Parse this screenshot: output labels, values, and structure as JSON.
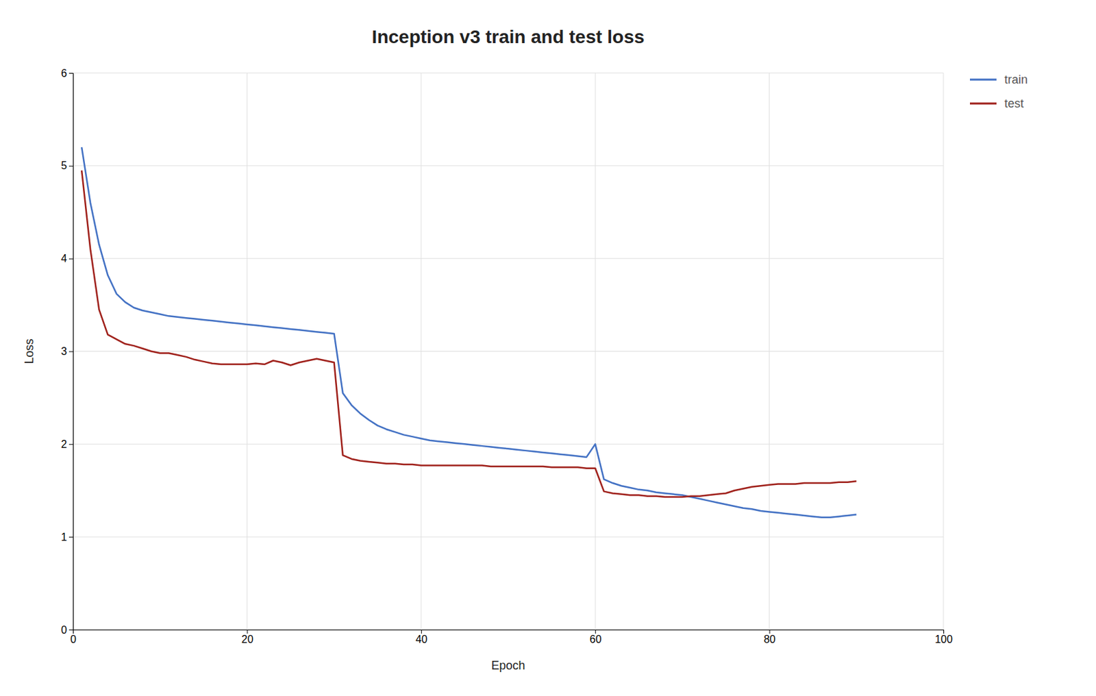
{
  "chart_data": {
    "type": "line",
    "title": "Inception v3 train and test loss",
    "xlabel": "Epoch",
    "ylabel": "Loss",
    "x": [
      1,
      2,
      3,
      4,
      5,
      6,
      7,
      8,
      9,
      10,
      11,
      12,
      13,
      14,
      15,
      16,
      17,
      18,
      19,
      20,
      21,
      22,
      23,
      24,
      25,
      26,
      27,
      28,
      29,
      30,
      31,
      32,
      33,
      34,
      35,
      36,
      37,
      38,
      39,
      40,
      41,
      42,
      43,
      44,
      45,
      46,
      47,
      48,
      49,
      50,
      51,
      52,
      53,
      54,
      55,
      56,
      57,
      58,
      59,
      60,
      61,
      62,
      63,
      64,
      65,
      66,
      67,
      68,
      69,
      70,
      71,
      72,
      73,
      74,
      75,
      76,
      77,
      78,
      79,
      80,
      81,
      82,
      83,
      84,
      85,
      86,
      87,
      88,
      89,
      90
    ],
    "series": [
      {
        "name": "train",
        "color": "#4472C4",
        "values": [
          5.2,
          4.6,
          4.15,
          3.82,
          3.62,
          3.53,
          3.47,
          3.44,
          3.42,
          3.4,
          3.38,
          3.37,
          3.36,
          3.35,
          3.34,
          3.33,
          3.32,
          3.31,
          3.3,
          3.29,
          3.28,
          3.27,
          3.26,
          3.25,
          3.24,
          3.23,
          3.22,
          3.21,
          3.2,
          3.19,
          2.55,
          2.42,
          2.33,
          2.26,
          2.2,
          2.16,
          2.13,
          2.1,
          2.08,
          2.06,
          2.04,
          2.03,
          2.02,
          2.01,
          2.0,
          1.99,
          1.98,
          1.97,
          1.96,
          1.95,
          1.94,
          1.93,
          1.92,
          1.91,
          1.9,
          1.89,
          1.88,
          1.87,
          1.86,
          2.0,
          1.62,
          1.58,
          1.55,
          1.53,
          1.51,
          1.5,
          1.48,
          1.47,
          1.46,
          1.45,
          1.43,
          1.41,
          1.39,
          1.37,
          1.35,
          1.33,
          1.31,
          1.3,
          1.28,
          1.27,
          1.26,
          1.25,
          1.24,
          1.23,
          1.22,
          1.21,
          1.21,
          1.22,
          1.23,
          1.24
        ]
      },
      {
        "name": "test",
        "color": "#A0221C",
        "values": [
          4.95,
          4.1,
          3.45,
          3.18,
          3.13,
          3.08,
          3.06,
          3.03,
          3.0,
          2.98,
          2.98,
          2.96,
          2.94,
          2.91,
          2.89,
          2.87,
          2.86,
          2.86,
          2.86,
          2.86,
          2.87,
          2.86,
          2.9,
          2.88,
          2.85,
          2.88,
          2.9,
          2.92,
          2.9,
          2.88,
          1.88,
          1.84,
          1.82,
          1.81,
          1.8,
          1.79,
          1.79,
          1.78,
          1.78,
          1.77,
          1.77,
          1.77,
          1.77,
          1.77,
          1.77,
          1.77,
          1.77,
          1.76,
          1.76,
          1.76,
          1.76,
          1.76,
          1.76,
          1.76,
          1.75,
          1.75,
          1.75,
          1.75,
          1.74,
          1.74,
          1.49,
          1.47,
          1.46,
          1.45,
          1.45,
          1.44,
          1.44,
          1.43,
          1.43,
          1.43,
          1.44,
          1.44,
          1.45,
          1.46,
          1.47,
          1.5,
          1.52,
          1.54,
          1.55,
          1.56,
          1.57,
          1.57,
          1.57,
          1.58,
          1.58,
          1.58,
          1.58,
          1.59,
          1.59,
          1.6
        ]
      }
    ],
    "xlim": [
      0,
      100
    ],
    "ylim": [
      0,
      6
    ],
    "xticks": [
      0,
      20,
      40,
      60,
      80,
      100
    ],
    "yticks": [
      0,
      1,
      2,
      3,
      4,
      5,
      6
    ],
    "grid": true,
    "legend": "upper right"
  }
}
